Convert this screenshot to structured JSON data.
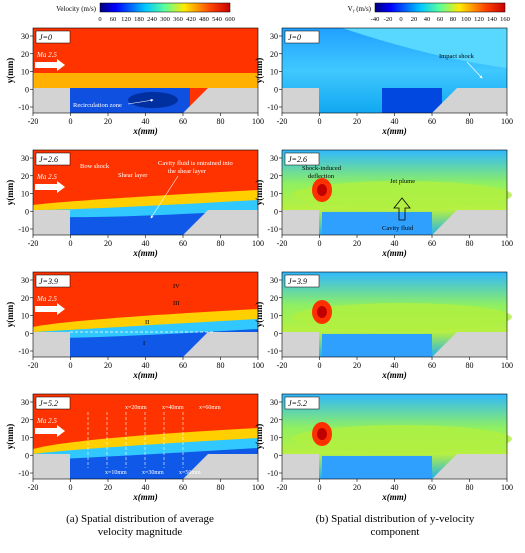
{
  "colorbar_a": {
    "label": "Velocity (m/s)",
    "ticks": [
      "0",
      "60",
      "120",
      "180",
      "240",
      "300",
      "360",
      "420",
      "480",
      "540",
      "600"
    ]
  },
  "colorbar_b": {
    "label": "Vᵧ (m/s)",
    "ticks": [
      "-40",
      "-20",
      "0",
      "20",
      "40",
      "60",
      "80",
      "100",
      "120",
      "140",
      "160"
    ]
  },
  "axes": {
    "ylabel": "y(mm)",
    "xlabel": "x(mm)",
    "xticks": [
      "-20",
      "0",
      "20",
      "40",
      "60",
      "80",
      "100"
    ],
    "yticks": [
      "30",
      "20",
      "10",
      "0",
      "-10"
    ]
  },
  "panels_a": [
    {
      "j": "J=0",
      "ma": "Ma 2.5",
      "notes": [
        "Recirculation zone"
      ]
    },
    {
      "j": "J=2.6",
      "ma": "Ma 2.5",
      "notes": [
        "Bow shock",
        "Shear layer",
        "Cavity fluid is entrained into",
        "the shear layer"
      ]
    },
    {
      "j": "J=3.9",
      "ma": "Ma 2.5",
      "notes": [
        "IV",
        "III",
        "II",
        "I"
      ]
    },
    {
      "j": "J=5.2",
      "ma": "Ma 2.5",
      "notes": [
        "x=20mm",
        "x=40mm",
        "x=60mm",
        "x=10mm",
        "x=30mm",
        "x=50mm"
      ]
    }
  ],
  "panels_b": [
    {
      "j": "J=0",
      "notes": [
        "Impact shock"
      ]
    },
    {
      "j": "J=2.6",
      "notes": [
        "Shock-induced",
        "deflection",
        "Jet plume",
        "Cavity fluid"
      ]
    },
    {
      "j": "J=3.9",
      "notes": []
    },
    {
      "j": "J=5.2",
      "notes": []
    }
  ],
  "captions": {
    "a_line1": "(a) Spatial distribution of average",
    "a_line2": "velocity magnitude",
    "b_line1": "(b) Spatial distribution of y-velocity",
    "b_line2": "component"
  }
}
